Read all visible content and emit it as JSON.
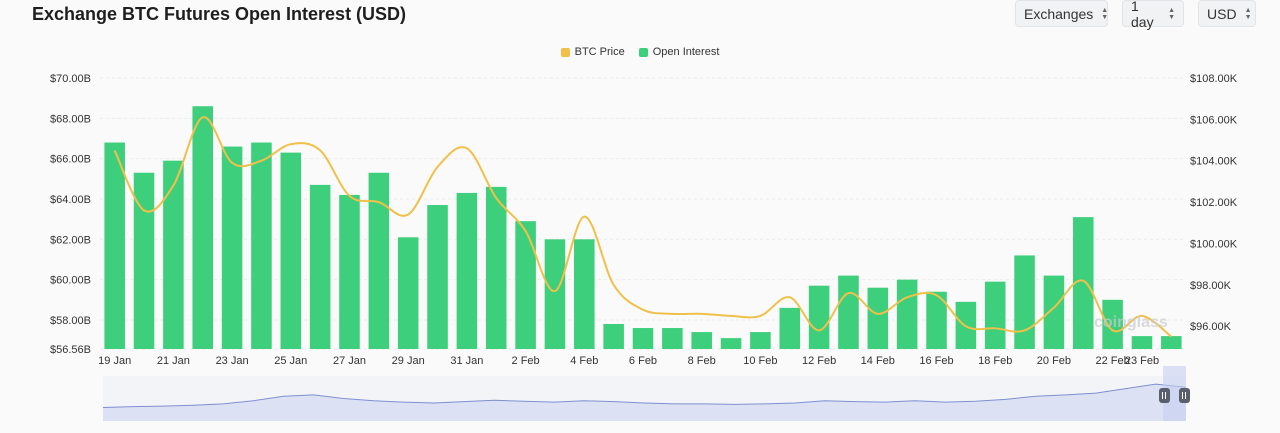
{
  "header": {
    "title": "Exchange BTC Futures Open Interest (USD)"
  },
  "controls": {
    "exchanges_label": "Exchanges",
    "interval_label": "1 day",
    "currency_label": "USD"
  },
  "watermark": "coinglass",
  "colors": {
    "open_interest": "#3ecf7c",
    "btc_price": "#f0c04a",
    "navigator_fill": "#d6dcf3",
    "navigator_line": "#7f8fd0"
  },
  "chart_data": {
    "type": "bar",
    "title": "Exchange BTC Futures Open Interest (USD)",
    "xlabel": "",
    "x_ticks": [
      "19 Jan",
      "21 Jan",
      "23 Jan",
      "25 Jan",
      "27 Jan",
      "29 Jan",
      "31 Jan",
      "2 Feb",
      "4 Feb",
      "6 Feb",
      "8 Feb",
      "10 Feb",
      "12 Feb",
      "14 Feb",
      "16 Feb",
      "18 Feb",
      "20 Feb",
      "22 Feb",
      "23 Feb"
    ],
    "categories": [
      "19 Jan",
      "20 Jan",
      "21 Jan",
      "22 Jan",
      "23 Jan",
      "24 Jan",
      "25 Jan",
      "26 Jan",
      "27 Jan",
      "28 Jan",
      "29 Jan",
      "30 Jan",
      "31 Jan",
      "1 Feb",
      "2 Feb",
      "3 Feb",
      "4 Feb",
      "5 Feb",
      "6 Feb",
      "7 Feb",
      "8 Feb",
      "9 Feb",
      "10 Feb",
      "11 Feb",
      "12 Feb",
      "13 Feb",
      "14 Feb",
      "15 Feb",
      "16 Feb",
      "17 Feb",
      "18 Feb",
      "19 Feb",
      "20 Feb",
      "21 Feb",
      "22 Feb",
      "23 Feb",
      "24 Feb"
    ],
    "legend": [
      "BTC Price",
      "Open Interest"
    ],
    "legend_position": "top-center",
    "y_left": {
      "ticks": [
        "$70.00B",
        "$68.00B",
        "$66.00B",
        "$64.00B",
        "$62.00B",
        "$60.00B",
        "$58.00B",
        "$56.56B"
      ],
      "ylim": [
        56.56,
        70.0
      ],
      "unit": "B USD"
    },
    "y_right": {
      "ticks": [
        "$108.00K",
        "$106.00K",
        "$104.00K",
        "$102.00K",
        "$100.00K",
        "$98.00K",
        "$96.00K"
      ],
      "ylim": [
        94.9,
        108.0
      ],
      "unit": "K USD"
    },
    "series": [
      {
        "name": "Open Interest",
        "type": "bar",
        "axis": "left",
        "values": [
          66.8,
          65.3,
          65.9,
          68.6,
          66.6,
          66.8,
          66.3,
          64.7,
          64.2,
          65.3,
          62.1,
          63.7,
          64.3,
          64.6,
          62.9,
          62.0,
          62.0,
          57.8,
          57.6,
          57.6,
          57.4,
          57.1,
          57.4,
          58.6,
          59.7,
          60.2,
          59.6,
          60.0,
          59.4,
          58.9,
          59.9,
          61.2,
          60.2,
          63.1,
          59.0,
          57.2,
          57.2
        ],
        "ylim": [
          56.56,
          70.0
        ]
      },
      {
        "name": "BTC Price",
        "type": "line",
        "axis": "right",
        "values": [
          104.5,
          101.6,
          102.8,
          106.1,
          103.9,
          104.0,
          104.8,
          104.5,
          102.3,
          102.0,
          101.4,
          103.7,
          104.6,
          102.2,
          100.6,
          97.7,
          101.3,
          98.0,
          96.8,
          96.6,
          96.6,
          96.5,
          96.5,
          97.4,
          95.8,
          97.6,
          96.6,
          97.4,
          97.5,
          96.0,
          95.9,
          95.8,
          96.9,
          98.2,
          95.8,
          96.5,
          95.5
        ],
        "ylim": [
          94.9,
          108.0
        ]
      }
    ],
    "navigator": {
      "type": "area",
      "values": [
        0.3,
        0.32,
        0.33,
        0.35,
        0.38,
        0.45,
        0.55,
        0.58,
        0.5,
        0.45,
        0.42,
        0.4,
        0.43,
        0.46,
        0.44,
        0.42,
        0.45,
        0.43,
        0.4,
        0.38,
        0.38,
        0.37,
        0.38,
        0.4,
        0.45,
        0.43,
        0.42,
        0.45,
        0.42,
        0.44,
        0.48,
        0.55,
        0.58,
        0.62,
        0.72,
        0.82,
        0.75
      ]
    }
  }
}
